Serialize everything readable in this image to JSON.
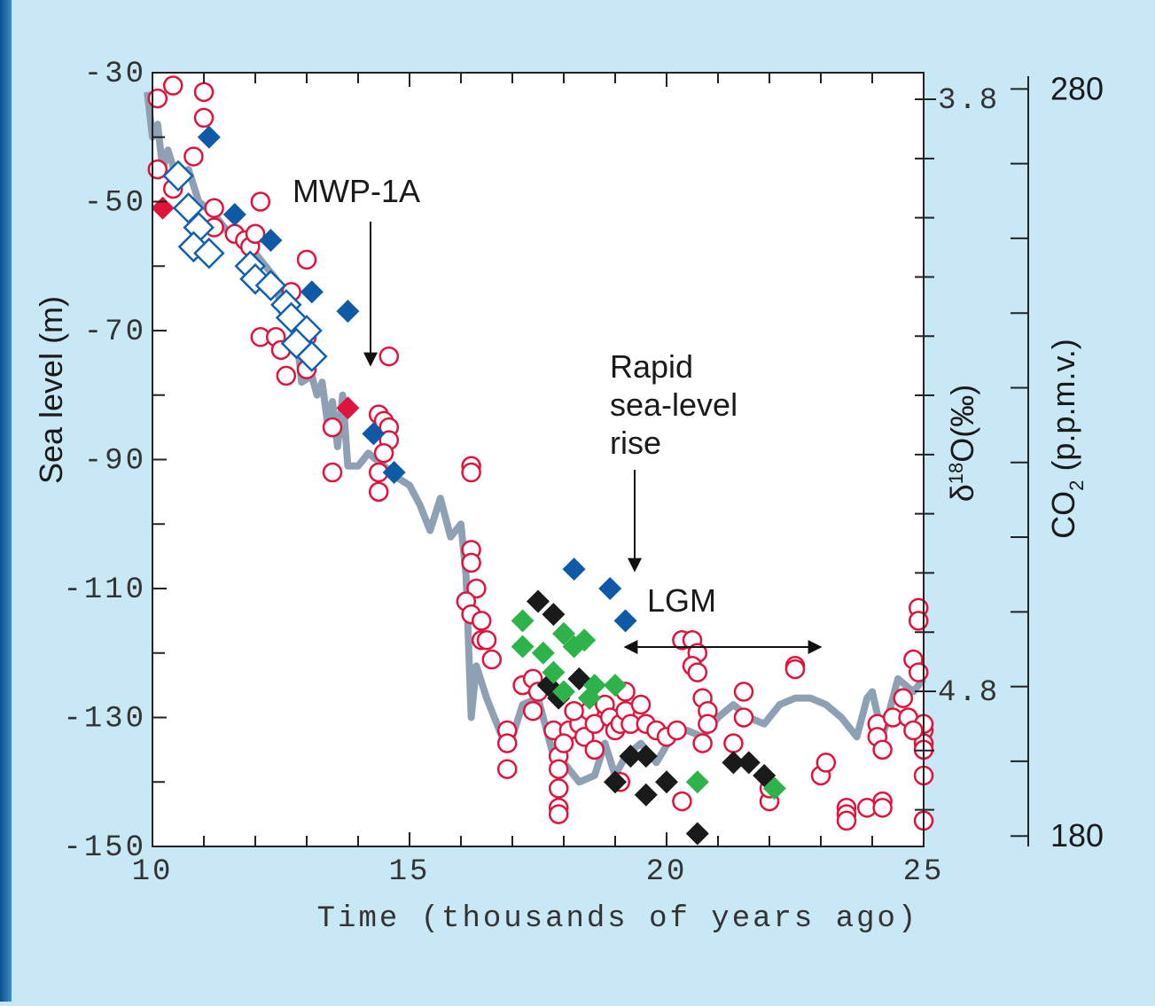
{
  "chart_data": {
    "type": "scatter",
    "xlabel": "Time (thousands of years ago)",
    "ylabel": "Sea level (m)",
    "y2label": [
      "δ",
      "18",
      "O(‰)"
    ],
    "y3label": [
      "CO",
      "2",
      " (p.p.m.v.)"
    ],
    "xlim": [
      10,
      25
    ],
    "xticks": [
      10,
      15,
      20,
      25
    ],
    "x_minor_ticks": [
      11,
      12,
      13,
      14,
      16,
      17,
      18,
      19,
      21,
      22,
      23,
      24
    ],
    "ylim": [
      -150,
      -30
    ],
    "yticks": [
      -30,
      -50,
      -70,
      -90,
      -110,
      -130,
      -150
    ],
    "y_minor_ticks": [
      -40,
      -60,
      -80,
      -100,
      -120,
      -140
    ],
    "y2lim": [
      3.755,
      5.062
    ],
    "y2_inverted": true,
    "y2ticks": [
      3.8,
      4.8
    ],
    "y2_minor_ticks": [
      3.9,
      4.0,
      4.1,
      4.2,
      4.3,
      4.4,
      4.5,
      4.6,
      4.7,
      4.9,
      5.0
    ],
    "y3lim": [
      178.6,
      281.7
    ],
    "y3ticks": [
      280,
      180
    ],
    "y3_minor_ticks": [
      270,
      260,
      250,
      240,
      230,
      220,
      210,
      200,
      190
    ],
    "annotations": [
      {
        "text": [
          "MWP-1A"
        ]
      },
      {
        "text": [
          "Rapid",
          "sea-level",
          "rise"
        ]
      },
      {
        "text": [
          "LGM"
        ]
      }
    ],
    "series": [
      {
        "marker": "line",
        "color": "#8ea1b4",
        "x": [
          9.9,
          10.0,
          10.1,
          10.2,
          10.3,
          10.5,
          10.7,
          10.9,
          11.2,
          11.5,
          11.8,
          12.0,
          12.2,
          12.4,
          12.5,
          12.7,
          12.8,
          12.9,
          13.1,
          13.2,
          13.3,
          13.4,
          13.5,
          13.6,
          13.7,
          13.8,
          14.0,
          14.2,
          14.5,
          14.8,
          15.0,
          15.2,
          15.4,
          15.6,
          15.8,
          16.0,
          16.1,
          16.2,
          16.3,
          16.5,
          16.8,
          17.0,
          17.2,
          17.5,
          17.8,
          18.0,
          18.3,
          18.6,
          18.8,
          19.0,
          19.2,
          19.5,
          19.8,
          20.1,
          20.4,
          20.7,
          21.0,
          21.3,
          21.6,
          21.9,
          22.2,
          22.5,
          22.8,
          23.1,
          23.4,
          23.7,
          23.9,
          24.0,
          24.2,
          24.5,
          24.8,
          25.0
        ],
        "values": [
          -33,
          -40,
          -38,
          -45,
          -42,
          -47,
          -45,
          -50,
          -52,
          -55,
          -57,
          -58,
          -60,
          -62,
          -67,
          -68,
          -70,
          -78,
          -77,
          -80,
          -78,
          -84,
          -81,
          -88,
          -80,
          -91,
          -91,
          -89,
          -91,
          -93,
          -94,
          -97,
          -101,
          -96,
          -102,
          -100,
          -108,
          -130,
          -122,
          -127,
          -133,
          -133,
          -128,
          -127,
          -136,
          -137,
          -140,
          -139,
          -134,
          -139,
          -136,
          -134,
          -137,
          -133,
          -132,
          -133,
          -130,
          -128,
          -130,
          -131,
          -128,
          -127,
          -127,
          -128,
          -130,
          -133,
          -127,
          -126,
          -133,
          -124,
          -126,
          -124
        ]
      },
      {
        "marker": "circle-open",
        "color": "#e0133c",
        "x": [
          10.1,
          10.4,
          11.0,
          11.0,
          10.1,
          10.4,
          10.8,
          12.1,
          11.2,
          11.2,
          11.6,
          11.8,
          11.9,
          12.0,
          13.0,
          12.7,
          12.1,
          12.4,
          12.5,
          13.0,
          12.6,
          13.0,
          14.6,
          13.5,
          14.4,
          14.5,
          14.6,
          14.6,
          14.5,
          14.4,
          14.4,
          13.5,
          16.2,
          16.2,
          16.2,
          16.2,
          16.3,
          16.1,
          16.2,
          16.4,
          16.4,
          16.5,
          16.6,
          16.9,
          16.9,
          16.9,
          17.2,
          17.4,
          17.5,
          17.4,
          17.8,
          17.9,
          17.9,
          17.9,
          17.9,
          17.9,
          18.1,
          18.0,
          18.3,
          18.4,
          18.5,
          18.6,
          18.6,
          18.8,
          18.9,
          19.0,
          19.1,
          19.2,
          19.2,
          19.3,
          19.5,
          19.6,
          19.8,
          20.0,
          20.2,
          20.3,
          20.3,
          20.5,
          20.6,
          20.5,
          20.6,
          20.7,
          20.8,
          20.8,
          20.7,
          21.3,
          21.5,
          21.5,
          22.0,
          22.0,
          22.5,
          22.5,
          23.0,
          23.1,
          23.5,
          23.5,
          23.5,
          23.9,
          24.2,
          24.2,
          24.1,
          24.1,
          24.2,
          24.4,
          24.6,
          24.7,
          24.8,
          24.9,
          24.9,
          24.9,
          25.0,
          25.0,
          25.0,
          25.0,
          25.0,
          25.0,
          24.8,
          19.1,
          18.2
        ],
        "values": [
          -34,
          -32,
          -33,
          -37,
          -45,
          -48,
          -43,
          -50,
          -51,
          -54,
          -55,
          -56,
          -57,
          -55,
          -59,
          -64,
          -71,
          -71,
          -73,
          -71,
          -77,
          -76,
          -74,
          -85,
          -83,
          -84,
          -85,
          -87,
          -89,
          -92,
          -95,
          -92,
          -91,
          -92,
          -104,
          -106,
          -110,
          -112,
          -114,
          -115,
          -118,
          -118,
          -121,
          -132,
          -134,
          -138,
          -125,
          -124,
          -126,
          -129,
          -132,
          -136,
          -138,
          -141,
          -144,
          -145,
          -132,
          -134,
          -131,
          -133,
          -129,
          -131,
          -135,
          -128,
          -130,
          -132,
          -131,
          -126,
          -129,
          -131,
          -128,
          -131,
          -132,
          -133,
          -132,
          -143,
          -118,
          -118,
          -120,
          -122,
          -123,
          -127,
          -129,
          -131,
          -134,
          -134,
          -126,
          -130,
          -143,
          -141,
          -122,
          -122.5,
          -139,
          -137,
          -144,
          -145,
          -146,
          -144,
          -143,
          -144,
          -131,
          -133,
          -135,
          -130,
          -127,
          -130,
          -121,
          -113,
          -115,
          -123,
          -132,
          -134,
          -131,
          -135,
          -139,
          -146,
          -132,
          -140,
          -129
        ]
      },
      {
        "marker": "diamond-open",
        "color": "#1060b0",
        "x": [
          10.5,
          10.7,
          10.9,
          10.8,
          11.1,
          11.9,
          12.0,
          12.3,
          12.6,
          12.7,
          13.0,
          12.8,
          13.1
        ],
        "values": [
          -46,
          -51,
          -54,
          -57,
          -58,
          -60,
          -62,
          -63,
          -66,
          -68,
          -70,
          -72,
          -74
        ]
      },
      {
        "marker": "diamond",
        "color": "#0e5aa7",
        "x": [
          11.1,
          11.6,
          12.3,
          13.1,
          13.8,
          14.3,
          14.7,
          18.2,
          18.9,
          19.2
        ],
        "values": [
          -40,
          -52,
          -56,
          -64,
          -67,
          -86,
          -92,
          -107,
          -110,
          -115
        ]
      },
      {
        "marker": "diamond",
        "color": "#e0133c",
        "x": [
          10.2,
          13.8
        ],
        "values": [
          -51,
          -82
        ]
      },
      {
        "marker": "diamond",
        "color": "#1a1a1a",
        "x": [
          17.5,
          17.8,
          17.7,
          17.9,
          18.3,
          18.5,
          19.0,
          19.3,
          19.6,
          19.6,
          20.0,
          20.6,
          21.3,
          21.6,
          21.9
        ],
        "values": [
          -112,
          -114,
          -125,
          -127,
          -124,
          -127,
          -140,
          -136,
          -136,
          -142,
          -140,
          -148,
          -137,
          -137,
          -139
        ]
      },
      {
        "marker": "diamond",
        "color": "#2db34a",
        "x": [
          17.2,
          17.2,
          17.6,
          17.8,
          18.0,
          18.2,
          18.4,
          18.0,
          18.6,
          18.5,
          19.0,
          20.6,
          22.1
        ],
        "values": [
          -115,
          -119,
          -120,
          -123,
          -117,
          -119,
          -118,
          -126,
          -125,
          -127,
          -125,
          -140,
          -141
        ]
      }
    ]
  }
}
